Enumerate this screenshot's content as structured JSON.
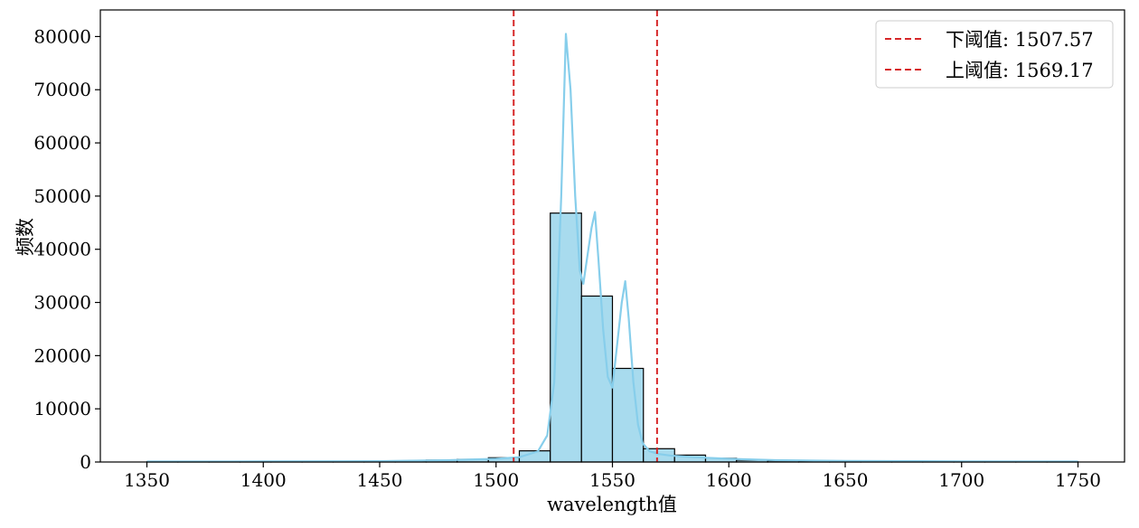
{
  "chart_data": {
    "type": "bar",
    "subtype": "histogram-with-kde",
    "xlabel": "wavelength值",
    "ylabel": "频数",
    "xlim": [
      1330,
      1770
    ],
    "ylim": [
      0,
      85000
    ],
    "x_ticks": [
      1350,
      1400,
      1450,
      1500,
      1550,
      1600,
      1650,
      1700,
      1750
    ],
    "y_ticks": [
      0,
      10000,
      20000,
      30000,
      40000,
      50000,
      60000,
      70000,
      80000
    ],
    "grid": false,
    "legend_position": "top-right",
    "bar_color": "#a8dbee",
    "bar_edge_color": "#000000",
    "kde_color": "#87ceeb",
    "bins": [
      {
        "x0": 1350,
        "x1": 1363.3,
        "count": 50
      },
      {
        "x0": 1363.3,
        "x1": 1376.7,
        "count": 60
      },
      {
        "x0": 1376.7,
        "x1": 1390,
        "count": 70
      },
      {
        "x0": 1390,
        "x1": 1403.3,
        "count": 80
      },
      {
        "x0": 1403.3,
        "x1": 1416.7,
        "count": 90
      },
      {
        "x0": 1416.7,
        "x1": 1430,
        "count": 100
      },
      {
        "x0": 1430,
        "x1": 1443.3,
        "count": 110
      },
      {
        "x0": 1443.3,
        "x1": 1456.7,
        "count": 130
      },
      {
        "x0": 1456.7,
        "x1": 1470,
        "count": 200
      },
      {
        "x0": 1470,
        "x1": 1483.3,
        "count": 350
      },
      {
        "x0": 1483.3,
        "x1": 1496.7,
        "count": 500
      },
      {
        "x0": 1496.7,
        "x1": 1510,
        "count": 800
      },
      {
        "x0": 1510,
        "x1": 1523.3,
        "count": 2100
      },
      {
        "x0": 1523.3,
        "x1": 1536.7,
        "count": 46800
      },
      {
        "x0": 1536.7,
        "x1": 1550,
        "count": 31200
      },
      {
        "x0": 1550,
        "x1": 1563.3,
        "count": 17600
      },
      {
        "x0": 1563.3,
        "x1": 1576.7,
        "count": 2500
      },
      {
        "x0": 1576.7,
        "x1": 1590,
        "count": 1300
      },
      {
        "x0": 1590,
        "x1": 1603.3,
        "count": 700
      },
      {
        "x0": 1603.3,
        "x1": 1616.7,
        "count": 350
      },
      {
        "x0": 1616.7,
        "x1": 1630,
        "count": 250
      },
      {
        "x0": 1630,
        "x1": 1643.3,
        "count": 180
      },
      {
        "x0": 1643.3,
        "x1": 1656.7,
        "count": 140
      },
      {
        "x0": 1656.7,
        "x1": 1670,
        "count": 110
      },
      {
        "x0": 1670,
        "x1": 1683.3,
        "count": 90
      },
      {
        "x0": 1683.3,
        "x1": 1696.7,
        "count": 80
      },
      {
        "x0": 1696.7,
        "x1": 1710,
        "count": 70
      },
      {
        "x0": 1710,
        "x1": 1723.3,
        "count": 60
      },
      {
        "x0": 1723.3,
        "x1": 1736.7,
        "count": 50
      },
      {
        "x0": 1736.7,
        "x1": 1750,
        "count": 50
      }
    ],
    "kde": [
      [
        1350,
        80
      ],
      [
        1400,
        100
      ],
      [
        1450,
        150
      ],
      [
        1480,
        350
      ],
      [
        1500,
        600
      ],
      [
        1510,
        900
      ],
      [
        1518,
        2000
      ],
      [
        1522,
        5000
      ],
      [
        1525,
        15000
      ],
      [
        1528,
        50000
      ],
      [
        1530,
        80500
      ],
      [
        1532,
        70000
      ],
      [
        1534,
        50000
      ],
      [
        1536,
        36000
      ],
      [
        1537.5,
        33500
      ],
      [
        1539,
        38000
      ],
      [
        1541,
        44000
      ],
      [
        1542.5,
        47000
      ],
      [
        1544,
        38000
      ],
      [
        1546,
        25000
      ],
      [
        1548,
        16000
      ],
      [
        1550,
        14000
      ],
      [
        1552,
        22000
      ],
      [
        1554,
        30000
      ],
      [
        1555.5,
        34000
      ],
      [
        1557,
        27000
      ],
      [
        1559,
        15000
      ],
      [
        1561,
        7000
      ],
      [
        1563,
        3500
      ],
      [
        1566,
        2000
      ],
      [
        1570,
        1500
      ],
      [
        1575,
        1200
      ],
      [
        1585,
        900
      ],
      [
        1600,
        600
      ],
      [
        1620,
        350
      ],
      [
        1650,
        200
      ],
      [
        1700,
        120
      ],
      [
        1750,
        80
      ]
    ],
    "threshold_lines": [
      {
        "name": "下阈值: 1507.57",
        "x": 1507.57,
        "color": "#d62728"
      },
      {
        "name": "上阈值: 1569.17",
        "x": 1569.17,
        "color": "#d62728"
      }
    ]
  }
}
